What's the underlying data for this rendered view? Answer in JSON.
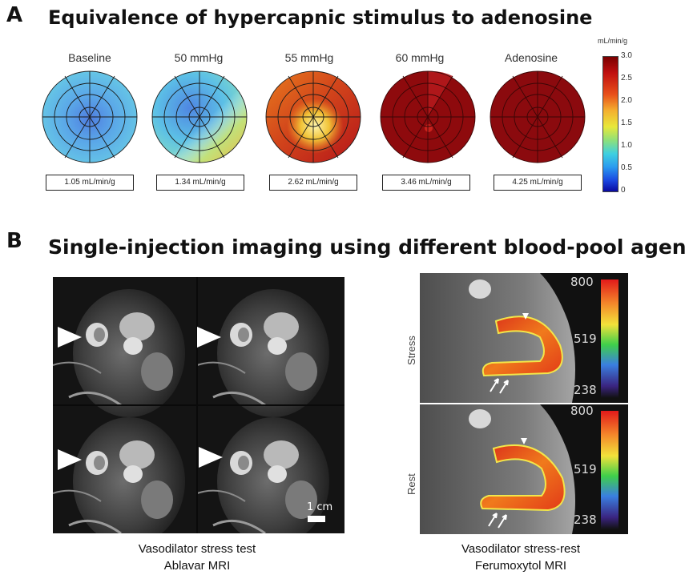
{
  "panel_a": {
    "letter": "A",
    "title": "Equivalence of hypercapnic stimulus to adenosine",
    "maps": [
      {
        "label": "Baseline",
        "value": "1.05 mL/min/g"
      },
      {
        "label": "50 mmHg",
        "value": "1.34 mL/min/g"
      },
      {
        "label": "55 mmHg",
        "value": "2.62 mL/min/g"
      },
      {
        "label": "60 mmHg",
        "value": "3.46 mL/min/g"
      },
      {
        "label": "Adenosine",
        "value": "4.25 mL/min/g"
      }
    ],
    "colorbar": {
      "unit": "mL/min/g",
      "ticks": [
        "3.0",
        "2.5",
        "2.0",
        "1.5",
        "1.0",
        "0.5",
        "0"
      ],
      "min": 0,
      "max": 3.0
    }
  },
  "panel_b": {
    "letter": "B",
    "title": "Single-injection imaging using different blood-pool agents",
    "left_caption_line1": "Vasodilator stress test",
    "left_caption_line2": "Ablavar MRI",
    "scale_bar_label": "1 cm",
    "right_caption_line1": "Vasodilator stress-rest",
    "right_caption_line2": "Ferumoxytol MRI",
    "right_rows": [
      {
        "label": "Stress",
        "ticks": [
          "800",
          "519",
          "238"
        ]
      },
      {
        "label": "Rest",
        "ticks": [
          "800",
          "519",
          "238"
        ]
      }
    ]
  },
  "colors": {
    "perfusion_low": "#1a3fd6",
    "perfusion_mid": "#f4e23a",
    "perfusion_high": "#8b0000"
  }
}
